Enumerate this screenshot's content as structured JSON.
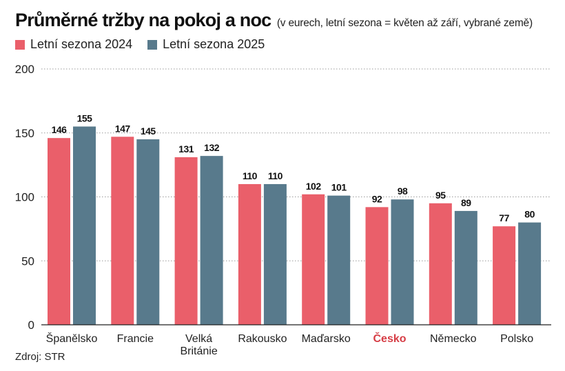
{
  "colors": {
    "series_2024": "#ea5f6a",
    "series_2025": "#587a8c",
    "highlight": "#d63d45",
    "grid": "#9a9a9a",
    "axis": "#222222"
  },
  "chart_data": {
    "type": "bar",
    "title": "Průměrné tržby na pokoj a noc",
    "subtitle": "(v eurech, letní sezona = květen až září, vybrané země)",
    "xlabel": "",
    "ylabel": "",
    "ylim": [
      0,
      200
    ],
    "yticks": [
      0,
      50,
      100,
      150,
      200
    ],
    "grid": true,
    "legend_position": "top-left",
    "categories": [
      [
        "Španělsko"
      ],
      [
        "Francie"
      ],
      [
        "Velká",
        "Británie"
      ],
      [
        "Rakousko"
      ],
      [
        "Maďarsko"
      ],
      [
        "Česko"
      ],
      [
        "Německo"
      ],
      [
        "Polsko"
      ]
    ],
    "highlight_category_index": 5,
    "series": [
      {
        "name": "Letní sezona 2024",
        "values": [
          146,
          147,
          131,
          110,
          102,
          92,
          95,
          77
        ]
      },
      {
        "name": "Letní sezona 2025",
        "values": [
          155,
          145,
          132,
          110,
          101,
          98,
          89,
          80
        ]
      }
    ],
    "source": "Zdroj: STR"
  }
}
